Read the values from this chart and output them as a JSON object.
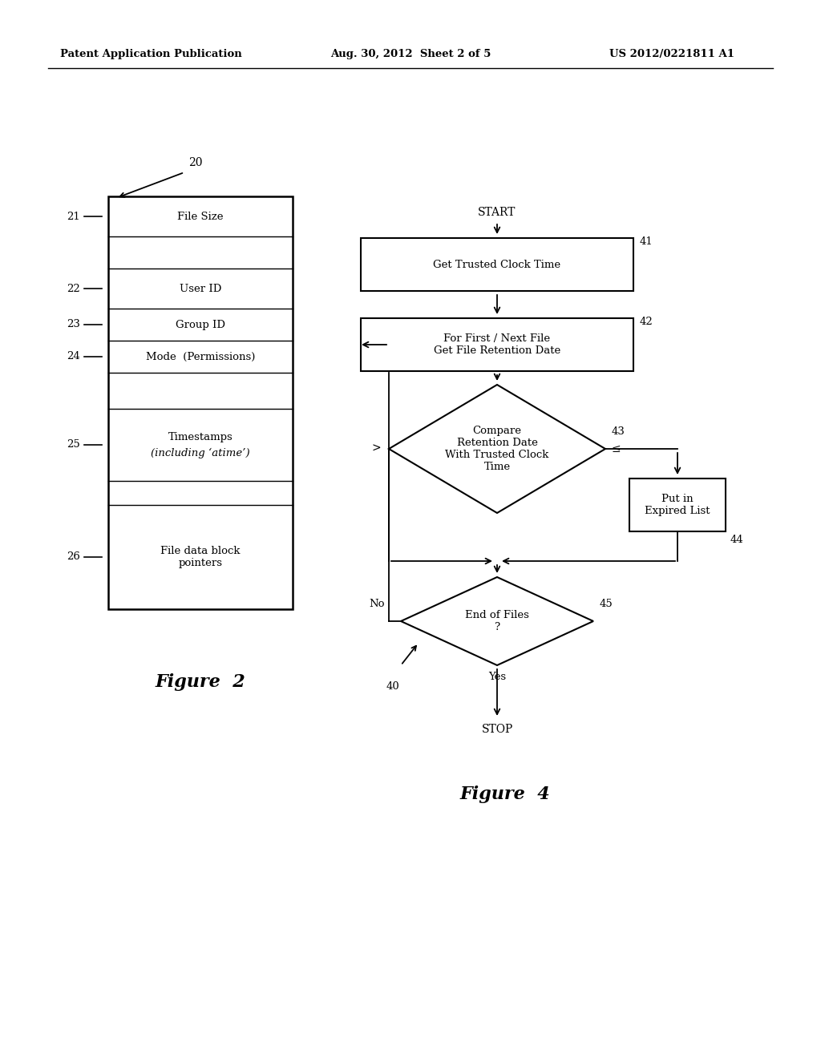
{
  "bg_color": "#ffffff",
  "header_left": "Patent Application Publication",
  "header_mid": "Aug. 30, 2012  Sheet 2 of 5",
  "header_right": "US 2012/0221811 A1",
  "fig2_title": "Figure  2",
  "fig4_title": "Figure  4",
  "fig2_label": "20",
  "gt_label": ">",
  "le_label": "≤",
  "no_label": "No",
  "yes_label": "Yes",
  "start_label": "START",
  "stop_label": "STOP",
  "loop_label": "40"
}
